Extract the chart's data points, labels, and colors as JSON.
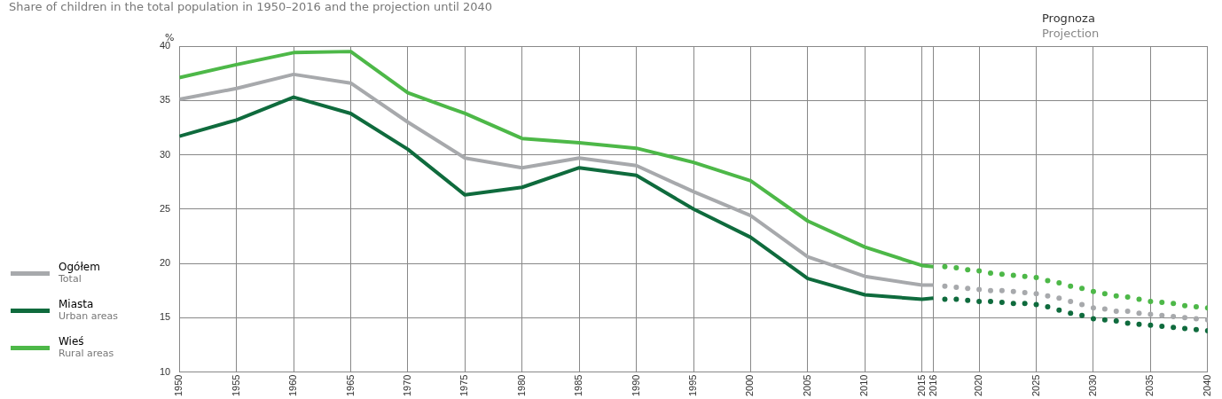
{
  "chart_data": {
    "type": "line",
    "title": "Share of children in the total population in 1950–2016 and the projection until 2040",
    "ylabel": "%",
    "annotations": [
      "Prognoza",
      "Projection"
    ],
    "xlim": [
      1950,
      2040
    ],
    "xticks": [
      1950,
      1955,
      1960,
      1965,
      1970,
      1975,
      1980,
      1985,
      1990,
      1995,
      2000,
      2005,
      2010,
      2015,
      2016,
      2020,
      2025,
      2030,
      2035,
      2040
    ],
    "ylim": [
      10,
      40
    ],
    "yticks": [
      10,
      15,
      20,
      25,
      30,
      35,
      40
    ],
    "grid": true,
    "legend": "left",
    "marker": "none",
    "line_style": "solid",
    "x": [
      1950,
      1955,
      1960,
      1965,
      1970,
      1975,
      1980,
      1985,
      1990,
      1995,
      2000,
      2005,
      2010,
      2015,
      2016
    ],
    "series": [
      {
        "name": "Ogółem\nTotal",
        "color": "#a7a9ac",
        "values": [
          35.1,
          36.1,
          37.4,
          36.6,
          33.0,
          29.7,
          28.8,
          29.7,
          29.0,
          26.6,
          24.4,
          20.6,
          18.8,
          18.0,
          18.0
        ]
      },
      {
        "name": "Miasta\nUrban areas",
        "color": "#0f6b3d",
        "values": [
          31.7,
          33.2,
          35.3,
          33.8,
          30.5,
          26.3,
          27.0,
          28.8,
          28.1,
          25.0,
          22.4,
          18.6,
          17.1,
          16.7,
          16.8
        ]
      },
      {
        "name": "Wieś\nRural areas",
        "color": "#4db848",
        "values": [
          37.1,
          38.3,
          39.4,
          39.5,
          35.7,
          33.8,
          31.5,
          31.1,
          30.6,
          29.3,
          27.6,
          23.9,
          21.5,
          19.8,
          19.7
        ]
      },
      {
        "type": "scatter",
        "marker": "circle",
        "color": "#a7a9ac",
        "x": [
          2017,
          2018,
          2019,
          2020,
          2021,
          2022,
          2023,
          2024,
          2025,
          2026,
          2027,
          2028,
          2029,
          2030,
          2031,
          2032,
          2033,
          2034,
          2035,
          2036,
          2037,
          2038,
          2039,
          2040
        ],
        "values": [
          17.9,
          17.8,
          17.7,
          17.6,
          17.5,
          17.5,
          17.4,
          17.3,
          17.2,
          17.0,
          16.8,
          16.5,
          16.2,
          15.9,
          15.8,
          15.6,
          15.6,
          15.4,
          15.3,
          15.2,
          15.1,
          15.0,
          14.9,
          14.8
        ]
      },
      {
        "type": "scatter",
        "marker": "circle",
        "color": "#0f6b3d",
        "x": [
          2017,
          2018,
          2019,
          2020,
          2021,
          2022,
          2023,
          2024,
          2025,
          2026,
          2027,
          2028,
          2029,
          2030,
          2031,
          2032,
          2033,
          2034,
          2035,
          2036,
          2037,
          2038,
          2039,
          2040
        ],
        "values": [
          16.7,
          16.7,
          16.6,
          16.5,
          16.5,
          16.4,
          16.3,
          16.3,
          16.2,
          16.0,
          15.7,
          15.4,
          15.2,
          14.9,
          14.8,
          14.7,
          14.5,
          14.4,
          14.3,
          14.2,
          14.1,
          14.0,
          13.9,
          13.8
        ]
      },
      {
        "type": "scatter",
        "marker": "circle",
        "color": "#4db848",
        "x": [
          2017,
          2018,
          2019,
          2020,
          2021,
          2022,
          2023,
          2024,
          2025,
          2026,
          2027,
          2028,
          2029,
          2030,
          2031,
          2032,
          2033,
          2034,
          2035,
          2036,
          2037,
          2038,
          2039,
          2040
        ],
        "values": [
          19.7,
          19.6,
          19.4,
          19.3,
          19.1,
          19.0,
          18.9,
          18.8,
          18.7,
          18.4,
          18.2,
          17.9,
          17.7,
          17.4,
          17.2,
          17.0,
          16.9,
          16.7,
          16.5,
          16.4,
          16.3,
          16.1,
          16.0,
          15.9
        ]
      }
    ]
  }
}
